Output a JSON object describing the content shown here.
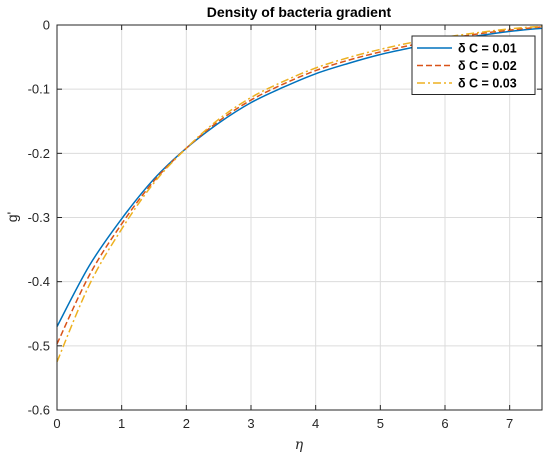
{
  "chart_data": {
    "type": "line",
    "title": "Density of bacteria gradient",
    "xlabel": "η",
    "ylabel": "g'",
    "xlim": [
      0,
      7.5
    ],
    "ylim": [
      -0.6,
      0
    ],
    "xticks": [
      "0",
      "1",
      "2",
      "3",
      "4",
      "5",
      "6",
      "7"
    ],
    "yticks": [
      "0",
      "-0.1",
      "-0.2",
      "-0.3",
      "-0.4",
      "-0.5",
      "-0.6"
    ],
    "grid": true,
    "legend_position": "top-right",
    "series": [
      {
        "name": "δ C = 0.01",
        "color": "#0072BD",
        "dash": "solid",
        "x": [
          0,
          0.5,
          1,
          1.5,
          2,
          2.5,
          3,
          3.5,
          4,
          4.5,
          5,
          5.5,
          6,
          6.5,
          7,
          7.5
        ],
        "y": [
          -0.47,
          -0.375,
          -0.302,
          -0.24,
          -0.192,
          -0.153,
          -0.121,
          -0.097,
          -0.076,
          -0.06,
          -0.046,
          -0.035,
          -0.025,
          -0.017,
          -0.01,
          -0.005
        ]
      },
      {
        "name": "δ C = 0.02",
        "color": "#D95319",
        "dash": "dashed",
        "x": [
          0,
          0.5,
          1,
          1.5,
          2,
          2.5,
          3,
          3.5,
          4,
          4.5,
          5,
          5.5,
          6,
          6.5,
          7,
          7.5
        ],
        "y": [
          -0.497,
          -0.39,
          -0.31,
          -0.243,
          -0.192,
          -0.15,
          -0.117,
          -0.092,
          -0.071,
          -0.055,
          -0.042,
          -0.031,
          -0.022,
          -0.014,
          -0.008,
          -0.003
        ]
      },
      {
        "name": "δ C = 0.03",
        "color": "#EDB120",
        "dash": "dashdot",
        "x": [
          0,
          0.5,
          1,
          1.5,
          2,
          2.5,
          3,
          3.5,
          4,
          4.5,
          5,
          5.5,
          6,
          6.5,
          7,
          7.5
        ],
        "y": [
          -0.525,
          -0.405,
          -0.318,
          -0.246,
          -0.192,
          -0.147,
          -0.113,
          -0.088,
          -0.067,
          -0.051,
          -0.038,
          -0.027,
          -0.019,
          -0.012,
          -0.006,
          -0.002
        ]
      }
    ]
  }
}
